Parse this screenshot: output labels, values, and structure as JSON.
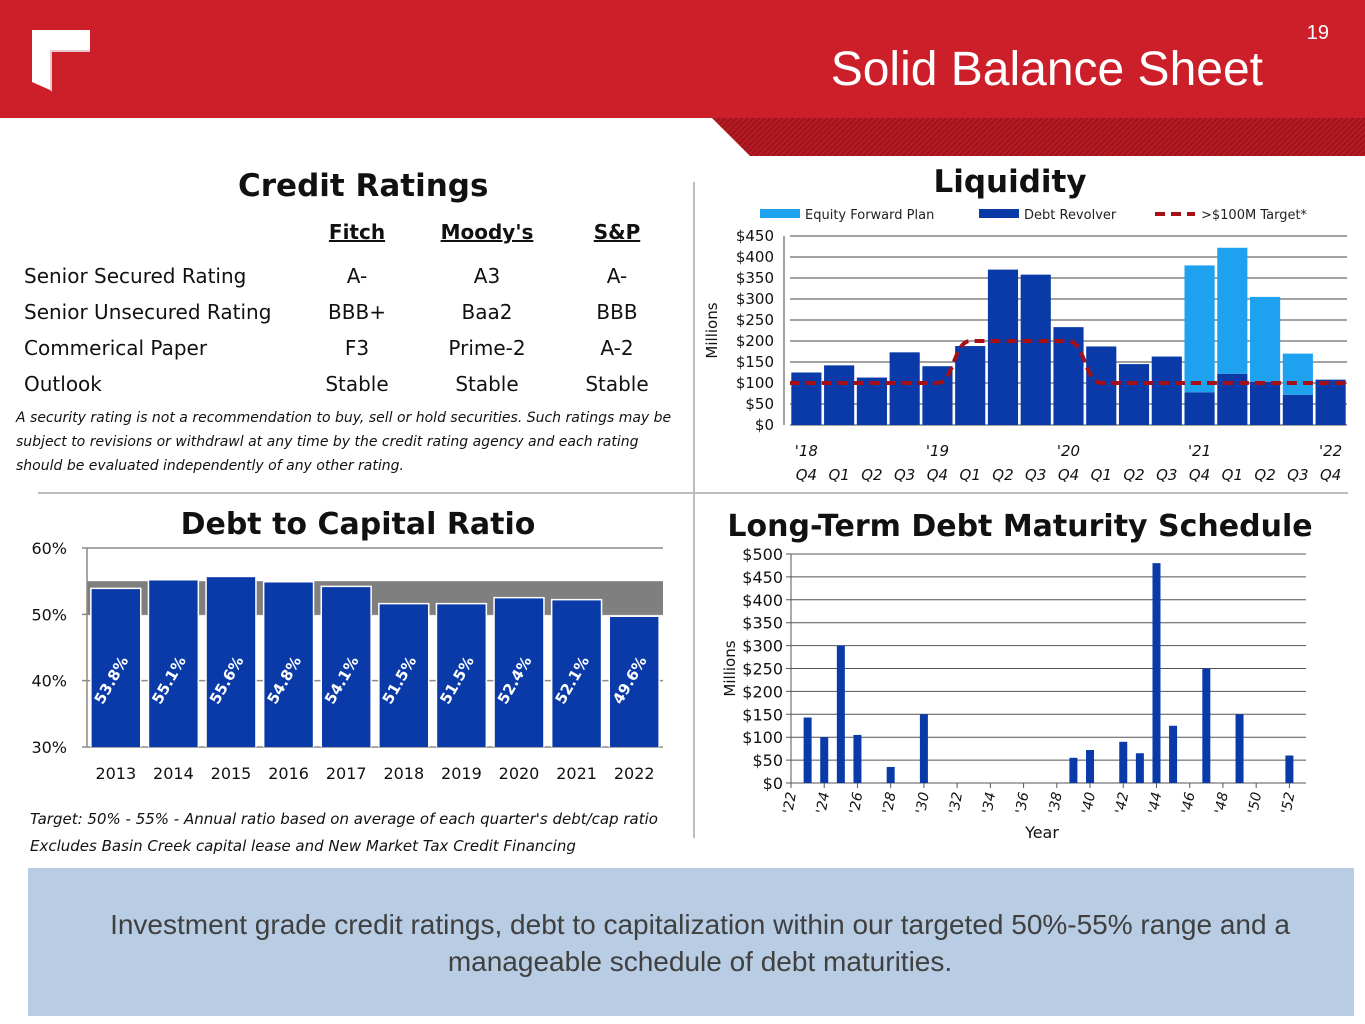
{
  "slide": {
    "page_number": "19",
    "title": "Solid Balance Sheet",
    "summary": "Investment grade credit ratings, debt to capitalization within our targeted 50%-55% range and a manageable schedule of debt maturities."
  },
  "colors": {
    "brand_red": "#cd1f29",
    "dark_blue": "#0a3aa8",
    "light_blue": "#1ea2ef",
    "target_red": "#a50f15",
    "band_gray": "#7f7f7f",
    "summary_bg": "#b8cce4"
  },
  "credit_ratings": {
    "title": "Credit Ratings",
    "columns": [
      "Fitch",
      "Moody's",
      "S&P"
    ],
    "rows": [
      {
        "label": "Senior Secured Rating",
        "values": [
          "A-",
          "A3",
          "A-"
        ]
      },
      {
        "label": "Senior Unsecured Rating",
        "values": [
          "BBB+",
          "Baa2",
          "BBB"
        ]
      },
      {
        "label": "Commerical Paper",
        "values": [
          "F3",
          "Prime-2",
          "A-2"
        ]
      },
      {
        "label": "Outlook",
        "values": [
          "Stable",
          "Stable",
          "Stable"
        ]
      }
    ],
    "disclaimer": "A security rating is not a recommendation to buy, sell or hold securities.  Such ratings may be subject to revisions or withdrawl at any time by the credit rating agency and each rating should be evaluated independently of any other rating."
  },
  "chart_data": [
    {
      "id": "liquidity",
      "type": "bar",
      "stacked": true,
      "title": "Liquidity",
      "ylabel": "Millions",
      "ylim": [
        0,
        450
      ],
      "yticks": [
        0,
        50,
        100,
        150,
        200,
        250,
        300,
        350,
        400,
        450
      ],
      "ytick_labels": [
        "$0",
        "$50",
        "$100",
        "$150",
        "$200",
        "$250",
        "$300",
        "$350",
        "$400",
        "$450"
      ],
      "categories": [
        "Q4",
        "Q1",
        "Q2",
        "Q3",
        "Q4",
        "Q1",
        "Q2",
        "Q3",
        "Q4",
        "Q1",
        "Q2",
        "Q3",
        "Q4",
        "Q1",
        "Q2",
        "Q3",
        "Q4"
      ],
      "year_labels": [
        {
          "index": 0,
          "label": "'18"
        },
        {
          "index": 4,
          "label": "'19"
        },
        {
          "index": 8,
          "label": "'20"
        },
        {
          "index": 12,
          "label": "'21"
        },
        {
          "index": 16,
          "label": "'22"
        }
      ],
      "legend": [
        "Equity Forward Plan",
        "Debt Revolver",
        ">$100M Target*"
      ],
      "series": [
        {
          "name": "Debt Revolver",
          "values": [
            125,
            142,
            113,
            173,
            140,
            188,
            370,
            358,
            233,
            187,
            145,
            163,
            78,
            122,
            103,
            72,
            108
          ]
        },
        {
          "name": "Equity Forward Plan",
          "values": [
            0,
            0,
            0,
            0,
            0,
            0,
            0,
            0,
            0,
            0,
            0,
            0,
            302,
            300,
            202,
            98,
            0
          ]
        },
        {
          "name": ">$100M Target*",
          "type": "line",
          "values": [
            100,
            100,
            100,
            100,
            100,
            200,
            200,
            200,
            200,
            100,
            100,
            100,
            100,
            100,
            100,
            100,
            100
          ]
        }
      ]
    },
    {
      "id": "debt_to_capital",
      "type": "bar",
      "title": "Debt to Capital Ratio",
      "ylim": [
        30,
        60
      ],
      "yticks": [
        30,
        40,
        50,
        60
      ],
      "ytick_labels": [
        "30%",
        "40%",
        "50%",
        "60%"
      ],
      "target_band": [
        50,
        55
      ],
      "categories": [
        "2013",
        "2014",
        "2015",
        "2016",
        "2017",
        "2018",
        "2019",
        "2020",
        "2021",
        "2022"
      ],
      "values": [
        53.8,
        55.1,
        55.6,
        54.8,
        54.1,
        51.5,
        51.5,
        52.4,
        52.1,
        49.6
      ],
      "data_labels": [
        "53.8%",
        "55.1%",
        "55.6%",
        "54.8%",
        "54.1%",
        "51.5%",
        "51.5%",
        "52.4%",
        "52.1%",
        "49.6%"
      ],
      "notes": [
        "Target:  50% - 55% - Annual ratio based on average of each quarter's debt/cap ratio",
        "Excludes Basin Creek capital lease and New Market Tax Credit Financing"
      ]
    },
    {
      "id": "debt_maturity",
      "type": "bar",
      "title": "Long-Term Debt Maturity Schedule",
      "xlabel": "Year",
      "ylabel": "Millions",
      "ylim": [
        0,
        500
      ],
      "yticks": [
        0,
        50,
        100,
        150,
        200,
        250,
        300,
        350,
        400,
        450,
        500
      ],
      "ytick_labels": [
        "$0",
        "$50",
        "$100",
        "$150",
        "$200",
        "$250",
        "$300",
        "$350",
        "$400",
        "$450",
        "$500"
      ],
      "x_range": [
        2022,
        2053
      ],
      "x_tick_labels": [
        "'22",
        "'24",
        "'26",
        "'28",
        "'30",
        "'32",
        "'34",
        "'36",
        "'38",
        "'40",
        "'42",
        "'44",
        "'46",
        "'48",
        "'50",
        "'52"
      ],
      "x": [
        2023,
        2024,
        2025,
        2026,
        2028,
        2030,
        2039,
        2040,
        2042,
        2043,
        2044,
        2045,
        2047,
        2049,
        2052
      ],
      "values": [
        143,
        100,
        300,
        105,
        35,
        150,
        55,
        72,
        90,
        65,
        480,
        125,
        250,
        150,
        60
      ]
    }
  ]
}
